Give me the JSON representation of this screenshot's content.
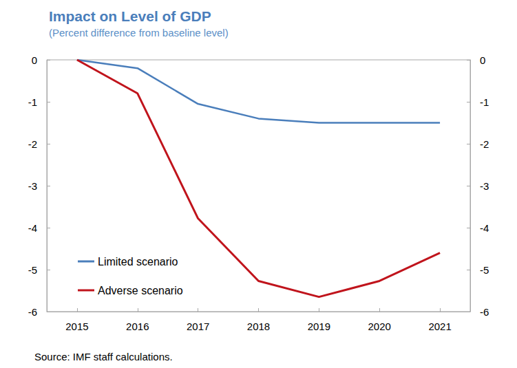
{
  "chart_data": {
    "type": "line",
    "title": "Impact on Level of GDP",
    "subtitle": "(Percent difference from baseline level)",
    "source": "Source: IMF staff calculations.",
    "categories": [
      "2015",
      "2016",
      "2017",
      "2018",
      "2019",
      "2020",
      "2021"
    ],
    "series": [
      {
        "name": "Limited scenario",
        "color": "#4a7ebb",
        "values": [
          0,
          -0.2,
          -1.05,
          -1.4,
          -1.5,
          -1.5,
          -1.5
        ]
      },
      {
        "name": "Adverse scenario",
        "color": "#c0141c",
        "values": [
          0,
          -0.8,
          -3.78,
          -5.27,
          -5.65,
          -5.27,
          -4.6
        ]
      }
    ],
    "ylim": [
      -6,
      0
    ],
    "yticks": [
      -6,
      -5,
      -4,
      -3,
      -2,
      -1,
      0
    ],
    "y2lim": [
      -6,
      0
    ],
    "y2ticks": [
      -6,
      -5,
      -4,
      -3,
      -2,
      -1,
      0
    ],
    "grid": false,
    "legend": "lower left"
  }
}
